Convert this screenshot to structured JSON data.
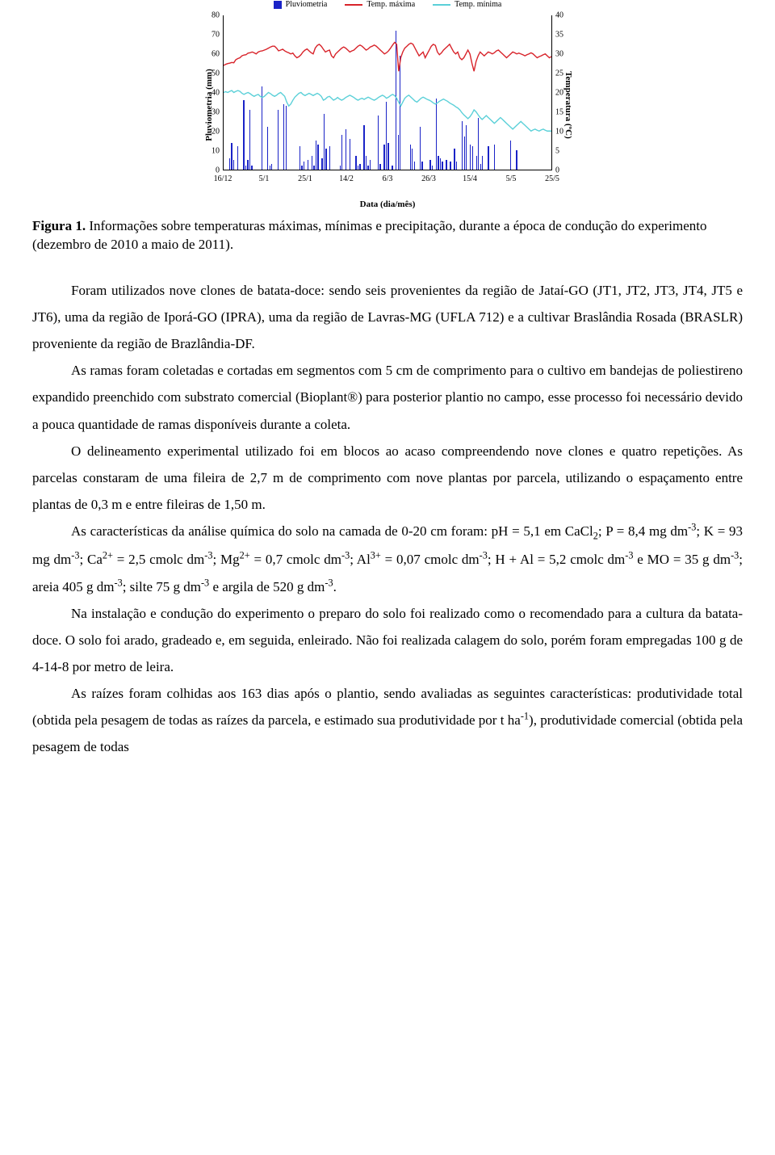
{
  "chart": {
    "type": "bar+line",
    "legend": [
      {
        "label": "Pluviometria",
        "kind": "bar",
        "color": "#1a23c7"
      },
      {
        "label": "Temp. máxima",
        "kind": "line",
        "color": "#d8232a"
      },
      {
        "label": "Temp. mínima",
        "kind": "line",
        "color": "#5bd0d8"
      }
    ],
    "y_left": {
      "label": "Pluviometria (mm)",
      "min": 0,
      "max": 80,
      "ticks": [
        0,
        10,
        20,
        30,
        40,
        50,
        60,
        70,
        80
      ]
    },
    "y_right": {
      "label": "Temperatura (ºC)",
      "min": 0,
      "max": 40,
      "ticks": [
        0,
        5,
        10,
        15,
        20,
        25,
        30,
        35,
        40
      ]
    },
    "x": {
      "label": "Data (dia/mês)",
      "ticks": [
        "16/12",
        "5/1",
        "25/1",
        "14/2",
        "6/3",
        "26/3",
        "15/4",
        "5/5",
        "25/5"
      ]
    },
    "bar_color": "#1a23c7",
    "bars": [
      0,
      0,
      6,
      14,
      5,
      0,
      12,
      0,
      0,
      36,
      2,
      5,
      31,
      2,
      0,
      0,
      0,
      0,
      43,
      0,
      0,
      22,
      2,
      3,
      0,
      0,
      31,
      0,
      0,
      34,
      33,
      0,
      0,
      0,
      0,
      0,
      0,
      12,
      2,
      4,
      0,
      5,
      0,
      7,
      2,
      15,
      13,
      0,
      6,
      29,
      11,
      0,
      12,
      0,
      0,
      0,
      0,
      2,
      18,
      0,
      21,
      0,
      16,
      0,
      0,
      7,
      2,
      3,
      0,
      23,
      7,
      2,
      5,
      0,
      0,
      0,
      28,
      3,
      0,
      13,
      35,
      14,
      0,
      2,
      0,
      72,
      18,
      59,
      0,
      0,
      0,
      0,
      13,
      11,
      4,
      0,
      0,
      22,
      4,
      0,
      0,
      0,
      5,
      2,
      0,
      37,
      7,
      6,
      4,
      0,
      5,
      0,
      4,
      0,
      11,
      4,
      0,
      0,
      25,
      17,
      23,
      0,
      13,
      12,
      0,
      7,
      27,
      3,
      7,
      0,
      0,
      12,
      0,
      0,
      13,
      0,
      0,
      0,
      0,
      0,
      0,
      0,
      15,
      0,
      0,
      10,
      0,
      0,
      0,
      0,
      0,
      0,
      0,
      0,
      0,
      0,
      0,
      0,
      0,
      0,
      0,
      0
    ],
    "temp_max_color": "#d8232a",
    "temp_max": [
      27,
      27.3,
      27.5,
      27.6,
      27.8,
      27.7,
      28.5,
      28.8,
      29,
      29.5,
      29.7,
      29.8,
      30.2,
      30.3,
      30.5,
      30.3,
      30,
      30.5,
      30.7,
      30.8,
      31,
      31.2,
      31.5,
      31.8,
      32,
      32,
      31.5,
      30.8,
      31,
      31.2,
      30.8,
      30.5,
      30.3,
      30,
      30.2,
      29.5,
      29,
      29.3,
      29.8,
      30.5,
      31,
      31.3,
      30.8,
      30.3,
      30,
      31.5,
      32.2,
      32.5,
      32,
      31.2,
      30.5,
      30.8,
      31,
      29.5,
      29,
      30,
      30.5,
      31,
      31.5,
      31.8,
      31.5,
      31,
      30.5,
      30.8,
      31,
      31.5,
      32,
      32.3,
      32,
      31.5,
      31,
      31.3,
      31.8,
      32,
      32.3,
      32,
      31.5,
      31,
      30.5,
      30,
      30.3,
      30.8,
      31.5,
      32.3,
      33,
      32.5,
      25.5,
      29,
      30.5,
      31.5,
      32,
      32.5,
      32.8,
      32.5,
      31.5,
      30.5,
      29.5,
      30,
      30.5,
      29,
      30,
      31,
      32,
      32.5,
      32.2,
      30.5,
      29.8,
      30.3,
      31,
      31.5,
      32,
      32.5,
      31.5,
      30.5,
      30,
      30.5,
      29,
      28.5,
      29,
      30,
      31,
      30,
      27.5,
      25.5,
      28,
      29.5,
      30.5,
      30,
      29.5,
      30,
      30.5,
      30.3,
      30,
      30.3,
      30.8,
      31,
      30.5,
      30,
      29.5,
      29,
      29.5,
      30,
      30.5,
      30.3,
      30,
      30.2,
      30,
      29.8,
      29.5,
      29.8,
      30,
      30.3,
      30,
      29.5,
      29,
      29.3,
      29.5,
      29.8,
      30,
      29.5,
      29,
      29.3
    ],
    "temp_min_color": "#5bd0d8",
    "temp_min": [
      20,
      20.2,
      20,
      20.3,
      20.5,
      20,
      20.3,
      20.5,
      20.3,
      19.8,
      19.5,
      19.8,
      20,
      19.7,
      19.3,
      19,
      19.3,
      19.5,
      19,
      18.7,
      19,
      19.5,
      20,
      19.7,
      19.3,
      19,
      19.3,
      19.7,
      20,
      19.5,
      19,
      17.5,
      16.5,
      17,
      18,
      18.8,
      19.3,
      19.8,
      20,
      19.5,
      19.2,
      19.5,
      19.8,
      19.5,
      19.2,
      19.5,
      19.8,
      19.5,
      19,
      18,
      18.3,
      18.8,
      19,
      18.5,
      18,
      18.3,
      18.7,
      18.3,
      18,
      18.3,
      18.7,
      19,
      19.3,
      19,
      18.7,
      18.3,
      18,
      18.3,
      18.5,
      18.2,
      18.5,
      18.8,
      18.5,
      18.2,
      18,
      18.3,
      18.7,
      19,
      19.3,
      19,
      18.5,
      18.8,
      19.2,
      19.5,
      19.2,
      18.5,
      17.5,
      16.5,
      17.5,
      18.5,
      19,
      19.3,
      18.8,
      18.3,
      17.8,
      17.5,
      18,
      18.5,
      18.8,
      18.5,
      18.2,
      18,
      17.7,
      17.3,
      17,
      17.3,
      17.7,
      18,
      18.3,
      18,
      17.7,
      17.3,
      17,
      16.7,
      16.3,
      16,
      15.5,
      14.8,
      14.2,
      13.7,
      13.2,
      13.7,
      14.5,
      15.5,
      15,
      14.2,
      13.5,
      13,
      13.5,
      14,
      13.5,
      13,
      12.5,
      12,
      12.5,
      13,
      13.5,
      13,
      12.5,
      12,
      11.5,
      11,
      10.5,
      11,
      11.5,
      12,
      12.5,
      12,
      11.5,
      11,
      10.5,
      10,
      10.3,
      10.5,
      10.2,
      10,
      10.3,
      10.5,
      10.2,
      10,
      10,
      10
    ],
    "background_color": "#ffffff",
    "axis_color": "#000000",
    "tick_fontsize": 10,
    "label_fontsize": 11
  },
  "caption": {
    "label": "Figura 1.",
    "text": "Informações sobre temperaturas máximas, mínimas e precipitação, durante a época de condução do experimento (dezembro de 2010 a maio de 2011)."
  },
  "paras": {
    "p1": "Foram utilizados nove clones de batata-doce: sendo seis provenientes da região de Jataí-GO (JT1, JT2, JT3, JT4, JT5 e JT6), uma da região de Iporá-GO (IPRA), uma da região de Lavras-MG (UFLA 712) e a cultivar Braslândia Rosada (BRASLR) proveniente da região de Brazlândia-DF.",
    "p2": "As ramas foram coletadas e cortadas em segmentos com 5 cm de comprimento para o cultivo em bandejas de poliestireno expandido preenchido com substrato comercial (Bioplant®) para posterior plantio no campo, esse processo foi necessário devido a pouca quantidade de ramas disponíveis durante a coleta.",
    "p3": "O delineamento experimental utilizado foi em blocos ao acaso compreendendo nove clones e quatro repetições. As parcelas constaram de uma fileira de 2,7 m de comprimento com nove plantas por parcela, utilizando o espaçamento entre plantas de 0,3 m e entre fileiras de 1,50 m.",
    "p5": "Na instalação e condução do experimento o preparo do solo foi realizado como o recomendado para a cultura da batata-doce. O solo foi arado, gradeado e, em seguida, enleirado. Não foi realizada calagem do solo, porém foram empregadas 100 g de 4-14-8 por metro de leira."
  }
}
